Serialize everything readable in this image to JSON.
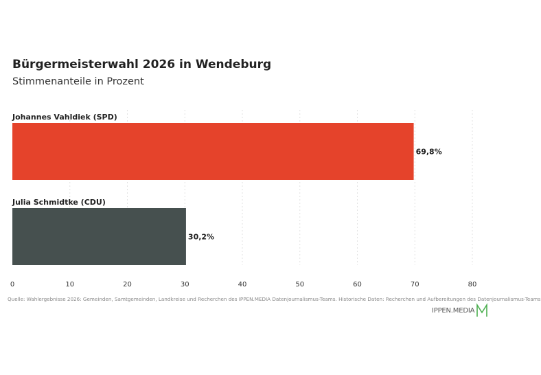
{
  "header": {
    "title": "Bürgermeisterwahl 2026 in Wendeburg",
    "subtitle": "Stimmenanteile in Prozent"
  },
  "chart_data": {
    "type": "bar",
    "orientation": "horizontal",
    "categories": [
      "Johannes Vahldiek (SPD)",
      "Julia Schmidtke (CDU)"
    ],
    "values": [
      69.8,
      30.2
    ],
    "value_labels": [
      "69,8%",
      "30,2%"
    ],
    "colors": [
      "#e5432b",
      "#46504f"
    ],
    "xlim": [
      0,
      80
    ],
    "xticks": [
      0,
      10,
      20,
      30,
      40,
      50,
      60,
      70,
      80
    ],
    "grid": true,
    "title": "Bürgermeisterwahl 2026 in Wendeburg",
    "subtitle": "Stimmenanteile in Prozent",
    "xlabel": "",
    "ylabel": ""
  },
  "footer": {
    "source": "Quelle: Wahlergebnisse 2026: Gemeinden, Samtgemeinden, Landkreise und Recherchen des IPPEN.MEDIA Datenjournalismus-Teams. Historische Daten: Recherchen und Aufbereitungen des Datenjournalismus-Teams",
    "brand": "IPPEN.MEDIA",
    "brand_logo_icon": "ippen-media-m-logo-icon",
    "brand_color": "#4caf50"
  }
}
